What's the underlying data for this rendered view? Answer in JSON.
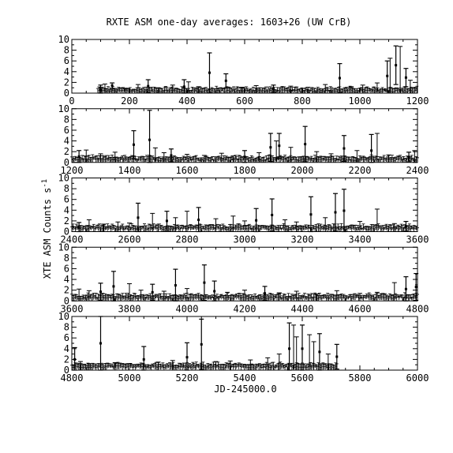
{
  "title": "RXTE ASM one-day averages: 1603+26 (UW CrB)",
  "xlabel": "JD-245000.0",
  "ylabel": "XTE ASM Counts s",
  "ylabel_superscript": "-1",
  "colors": {
    "background": "#ffffff",
    "ink": "#000000"
  },
  "chart_data": [
    {
      "type": "scatter",
      "panel": 1,
      "xlim": [
        0,
        1200
      ],
      "ylim": [
        0,
        10
      ],
      "x_ticks": [
        0,
        200,
        400,
        600,
        800,
        1000,
        1200
      ],
      "y_ticks": [
        0,
        2,
        4,
        6,
        8,
        10
      ],
      "points": [
        {
          "x": 100,
          "y": 0.6,
          "err": 0.9
        },
        {
          "x": 140,
          "y": 1.4,
          "err": 0.5
        },
        {
          "x": 265,
          "y": 1.3,
          "err": 1.2
        },
        {
          "x": 390,
          "y": 1.2,
          "err": 1.3
        },
        {
          "x": 478,
          "y": 3.8,
          "err": 3.7
        },
        {
          "x": 535,
          "y": 2.3,
          "err": 1.3
        },
        {
          "x": 700,
          "y": 0.8,
          "err": 0.7
        },
        {
          "x": 930,
          "y": 2.8,
          "err": 2.7
        },
        {
          "x": 1095,
          "y": 3.2,
          "err": 2.8
        },
        {
          "x": 1125,
          "y": 5.2,
          "err": 3.6
        },
        {
          "x": 1160,
          "y": 2.9,
          "err": 1.7
        }
      ],
      "error_spikes": [
        {
          "x": 115,
          "top": 1.7
        },
        {
          "x": 185,
          "top": 0.9
        },
        {
          "x": 230,
          "top": 1.6
        },
        {
          "x": 300,
          "top": 1.0
        },
        {
          "x": 350,
          "top": 1.5
        },
        {
          "x": 405,
          "top": 2.1
        },
        {
          "x": 440,
          "top": 1.2
        },
        {
          "x": 510,
          "top": 0.9
        },
        {
          "x": 590,
          "top": 1.1
        },
        {
          "x": 640,
          "top": 1.4
        },
        {
          "x": 760,
          "top": 1.3
        },
        {
          "x": 820,
          "top": 1.1
        },
        {
          "x": 880,
          "top": 1.6
        },
        {
          "x": 970,
          "top": 1.2
        },
        {
          "x": 1010,
          "top": 1.5
        },
        {
          "x": 1060,
          "top": 1.9
        },
        {
          "x": 1105,
          "top": 6.5
        },
        {
          "x": 1140,
          "top": 8.7
        },
        {
          "x": 1175,
          "top": 2.4
        }
      ],
      "data_range": [
        90,
        1200
      ],
      "baseline": 0.4
    },
    {
      "type": "scatter",
      "panel": 2,
      "xlim": [
        1200,
        2400
      ],
      "ylim": [
        0,
        10
      ],
      "x_ticks": [
        1200,
        1400,
        1600,
        1800,
        2000,
        2200,
        2400
      ],
      "y_ticks": [
        0,
        2,
        4,
        6,
        8,
        10
      ],
      "points": [
        {
          "x": 1225,
          "y": 1.1,
          "err": 1.1
        },
        {
          "x": 1415,
          "y": 3.3,
          "err": 2.6
        },
        {
          "x": 1470,
          "y": 4.2,
          "err": 5.5
        },
        {
          "x": 1545,
          "y": 1.3,
          "err": 1.2
        },
        {
          "x": 1800,
          "y": 1.0,
          "err": 1.2
        },
        {
          "x": 1890,
          "y": 2.8,
          "err": 2.6
        },
        {
          "x": 1920,
          "y": 3.1,
          "err": 2.3
        },
        {
          "x": 2010,
          "y": 3.4,
          "err": 3.3
        },
        {
          "x": 2145,
          "y": 2.6,
          "err": 2.4
        },
        {
          "x": 2240,
          "y": 2.2,
          "err": 3.0
        },
        {
          "x": 2370,
          "y": 1.0,
          "err": 0.9
        }
      ],
      "error_spikes": [
        {
          "x": 1250,
          "top": 2.3
        },
        {
          "x": 1300,
          "top": 1.6
        },
        {
          "x": 1350,
          "top": 1.9
        },
        {
          "x": 1490,
          "top": 2.7
        },
        {
          "x": 1520,
          "top": 1.8
        },
        {
          "x": 1600,
          "top": 1.5
        },
        {
          "x": 1660,
          "top": 1.3
        },
        {
          "x": 1720,
          "top": 1.7
        },
        {
          "x": 1760,
          "top": 1.2
        },
        {
          "x": 1850,
          "top": 1.8
        },
        {
          "x": 1910,
          "top": 4.0
        },
        {
          "x": 1960,
          "top": 2.8
        },
        {
          "x": 2050,
          "top": 2.0
        },
        {
          "x": 2100,
          "top": 1.6
        },
        {
          "x": 2190,
          "top": 2.2
        },
        {
          "x": 2260,
          "top": 5.4
        },
        {
          "x": 2300,
          "top": 1.4
        },
        {
          "x": 2390,
          "top": 2.2
        }
      ],
      "data_range": [
        1200,
        2400
      ],
      "baseline": 0.5
    },
    {
      "type": "scatter",
      "panel": 3,
      "xlim": [
        2400,
        3600
      ],
      "ylim": [
        0,
        10
      ],
      "x_ticks": [
        2400,
        2600,
        2800,
        3000,
        3200,
        3400,
        3600
      ],
      "y_ticks": [
        0,
        2,
        4,
        6,
        8,
        10
      ],
      "points": [
        {
          "x": 2425,
          "y": 0.8,
          "err": 0.9
        },
        {
          "x": 2630,
          "y": 2.6,
          "err": 2.7
        },
        {
          "x": 2730,
          "y": 2.0,
          "err": 1.8
        },
        {
          "x": 2840,
          "y": 2.2,
          "err": 2.3
        },
        {
          "x": 3040,
          "y": 2.1,
          "err": 2.2
        },
        {
          "x": 3095,
          "y": 3.1,
          "err": 3.0
        },
        {
          "x": 3230,
          "y": 3.2,
          "err": 3.3
        },
        {
          "x": 3315,
          "y": 3.6,
          "err": 3.5
        },
        {
          "x": 3345,
          "y": 3.9,
          "err": 4.0
        },
        {
          "x": 3560,
          "y": 1.0,
          "err": 0.9
        }
      ],
      "error_spikes": [
        {
          "x": 2460,
          "top": 2.2
        },
        {
          "x": 2510,
          "top": 1.4
        },
        {
          "x": 2560,
          "top": 1.8
        },
        {
          "x": 2600,
          "top": 1.6
        },
        {
          "x": 2680,
          "top": 3.4
        },
        {
          "x": 2760,
          "top": 2.6
        },
        {
          "x": 2800,
          "top": 3.8
        },
        {
          "x": 2900,
          "top": 2.4
        },
        {
          "x": 2960,
          "top": 2.9
        },
        {
          "x": 3000,
          "top": 2.0
        },
        {
          "x": 3140,
          "top": 2.2
        },
        {
          "x": 3180,
          "top": 1.8
        },
        {
          "x": 3280,
          "top": 2.6
        },
        {
          "x": 3400,
          "top": 1.9
        },
        {
          "x": 3460,
          "top": 4.2
        },
        {
          "x": 3520,
          "top": 1.5
        }
      ],
      "data_range": [
        2400,
        3600
      ],
      "baseline": 0.6
    },
    {
      "type": "scatter",
      "panel": 4,
      "xlim": [
        3600,
        4800
      ],
      "ylim": [
        0,
        10
      ],
      "x_ticks": [
        3600,
        3800,
        4000,
        4200,
        4400,
        4600,
        4800
      ],
      "y_ticks": [
        0,
        2,
        4,
        6,
        8,
        10
      ],
      "points": [
        {
          "x": 3700,
          "y": 1.7,
          "err": 1.6
        },
        {
          "x": 3745,
          "y": 2.7,
          "err": 2.8
        },
        {
          "x": 3880,
          "y": 1.6,
          "err": 1.5
        },
        {
          "x": 3960,
          "y": 2.9,
          "err": 3.0
        },
        {
          "x": 4060,
          "y": 3.4,
          "err": 3.3
        },
        {
          "x": 4095,
          "y": 1.8,
          "err": 1.9
        },
        {
          "x": 4270,
          "y": 1.4,
          "err": 1.3
        },
        {
          "x": 4760,
          "y": 2.2,
          "err": 2.3
        },
        {
          "x": 4795,
          "y": 2.6,
          "err": 2.5
        }
      ],
      "error_spikes": [
        {
          "x": 3625,
          "top": 2.2
        },
        {
          "x": 3660,
          "top": 1.9
        },
        {
          "x": 3800,
          "top": 3.2
        },
        {
          "x": 3840,
          "top": 2.0
        },
        {
          "x": 3920,
          "top": 1.8
        },
        {
          "x": 4000,
          "top": 2.3
        },
        {
          "x": 4140,
          "top": 1.6
        },
        {
          "x": 4200,
          "top": 2.0
        },
        {
          "x": 4320,
          "top": 1.5
        },
        {
          "x": 4380,
          "top": 1.8
        },
        {
          "x": 4450,
          "top": 1.3
        },
        {
          "x": 4520,
          "top": 1.9
        },
        {
          "x": 4600,
          "top": 1.4
        },
        {
          "x": 4660,
          "top": 1.6
        },
        {
          "x": 4720,
          "top": 3.4
        }
      ],
      "data_range": [
        3600,
        4800
      ],
      "baseline": 0.6
    },
    {
      "type": "scatter",
      "panel": 5,
      "xlim": [
        4800,
        6000
      ],
      "ylim": [
        0,
        10
      ],
      "x_ticks": [
        4800,
        5000,
        5200,
        5400,
        5600,
        5800,
        6000
      ],
      "y_ticks": [
        0,
        2,
        4,
        6,
        8,
        10
      ],
      "points": [
        {
          "x": 4810,
          "y": 2.0,
          "err": 2.2
        },
        {
          "x": 4900,
          "y": 5.0,
          "err": 5.0
        },
        {
          "x": 5050,
          "y": 2.0,
          "err": 2.4
        },
        {
          "x": 5200,
          "y": 2.4,
          "err": 2.7
        },
        {
          "x": 5250,
          "y": 4.8,
          "err": 4.7
        },
        {
          "x": 5555,
          "y": 4.0,
          "err": 4.8
        },
        {
          "x": 5600,
          "y": 4.0,
          "err": 4.4
        },
        {
          "x": 5660,
          "y": 3.4,
          "err": 3.4
        },
        {
          "x": 5720,
          "y": 2.5,
          "err": 2.3
        }
      ],
      "error_spikes": [
        {
          "x": 4830,
          "top": 1.6
        },
        {
          "x": 4860,
          "top": 1.2
        },
        {
          "x": 4950,
          "top": 1.4
        },
        {
          "x": 5000,
          "top": 1.2
        },
        {
          "x": 5100,
          "top": 1.5
        },
        {
          "x": 5150,
          "top": 1.8
        },
        {
          "x": 5300,
          "top": 1.6
        },
        {
          "x": 5350,
          "top": 1.7
        },
        {
          "x": 5420,
          "top": 1.9
        },
        {
          "x": 5480,
          "top": 2.3
        },
        {
          "x": 5520,
          "top": 3.0
        },
        {
          "x": 5570,
          "top": 8.4
        },
        {
          "x": 5580,
          "top": 6.2
        },
        {
          "x": 5625,
          "top": 6.6
        },
        {
          "x": 5640,
          "top": 5.3
        },
        {
          "x": 5690,
          "top": 3.0
        }
      ],
      "data_range": [
        4800,
        5720
      ],
      "baseline": 0.6
    }
  ]
}
